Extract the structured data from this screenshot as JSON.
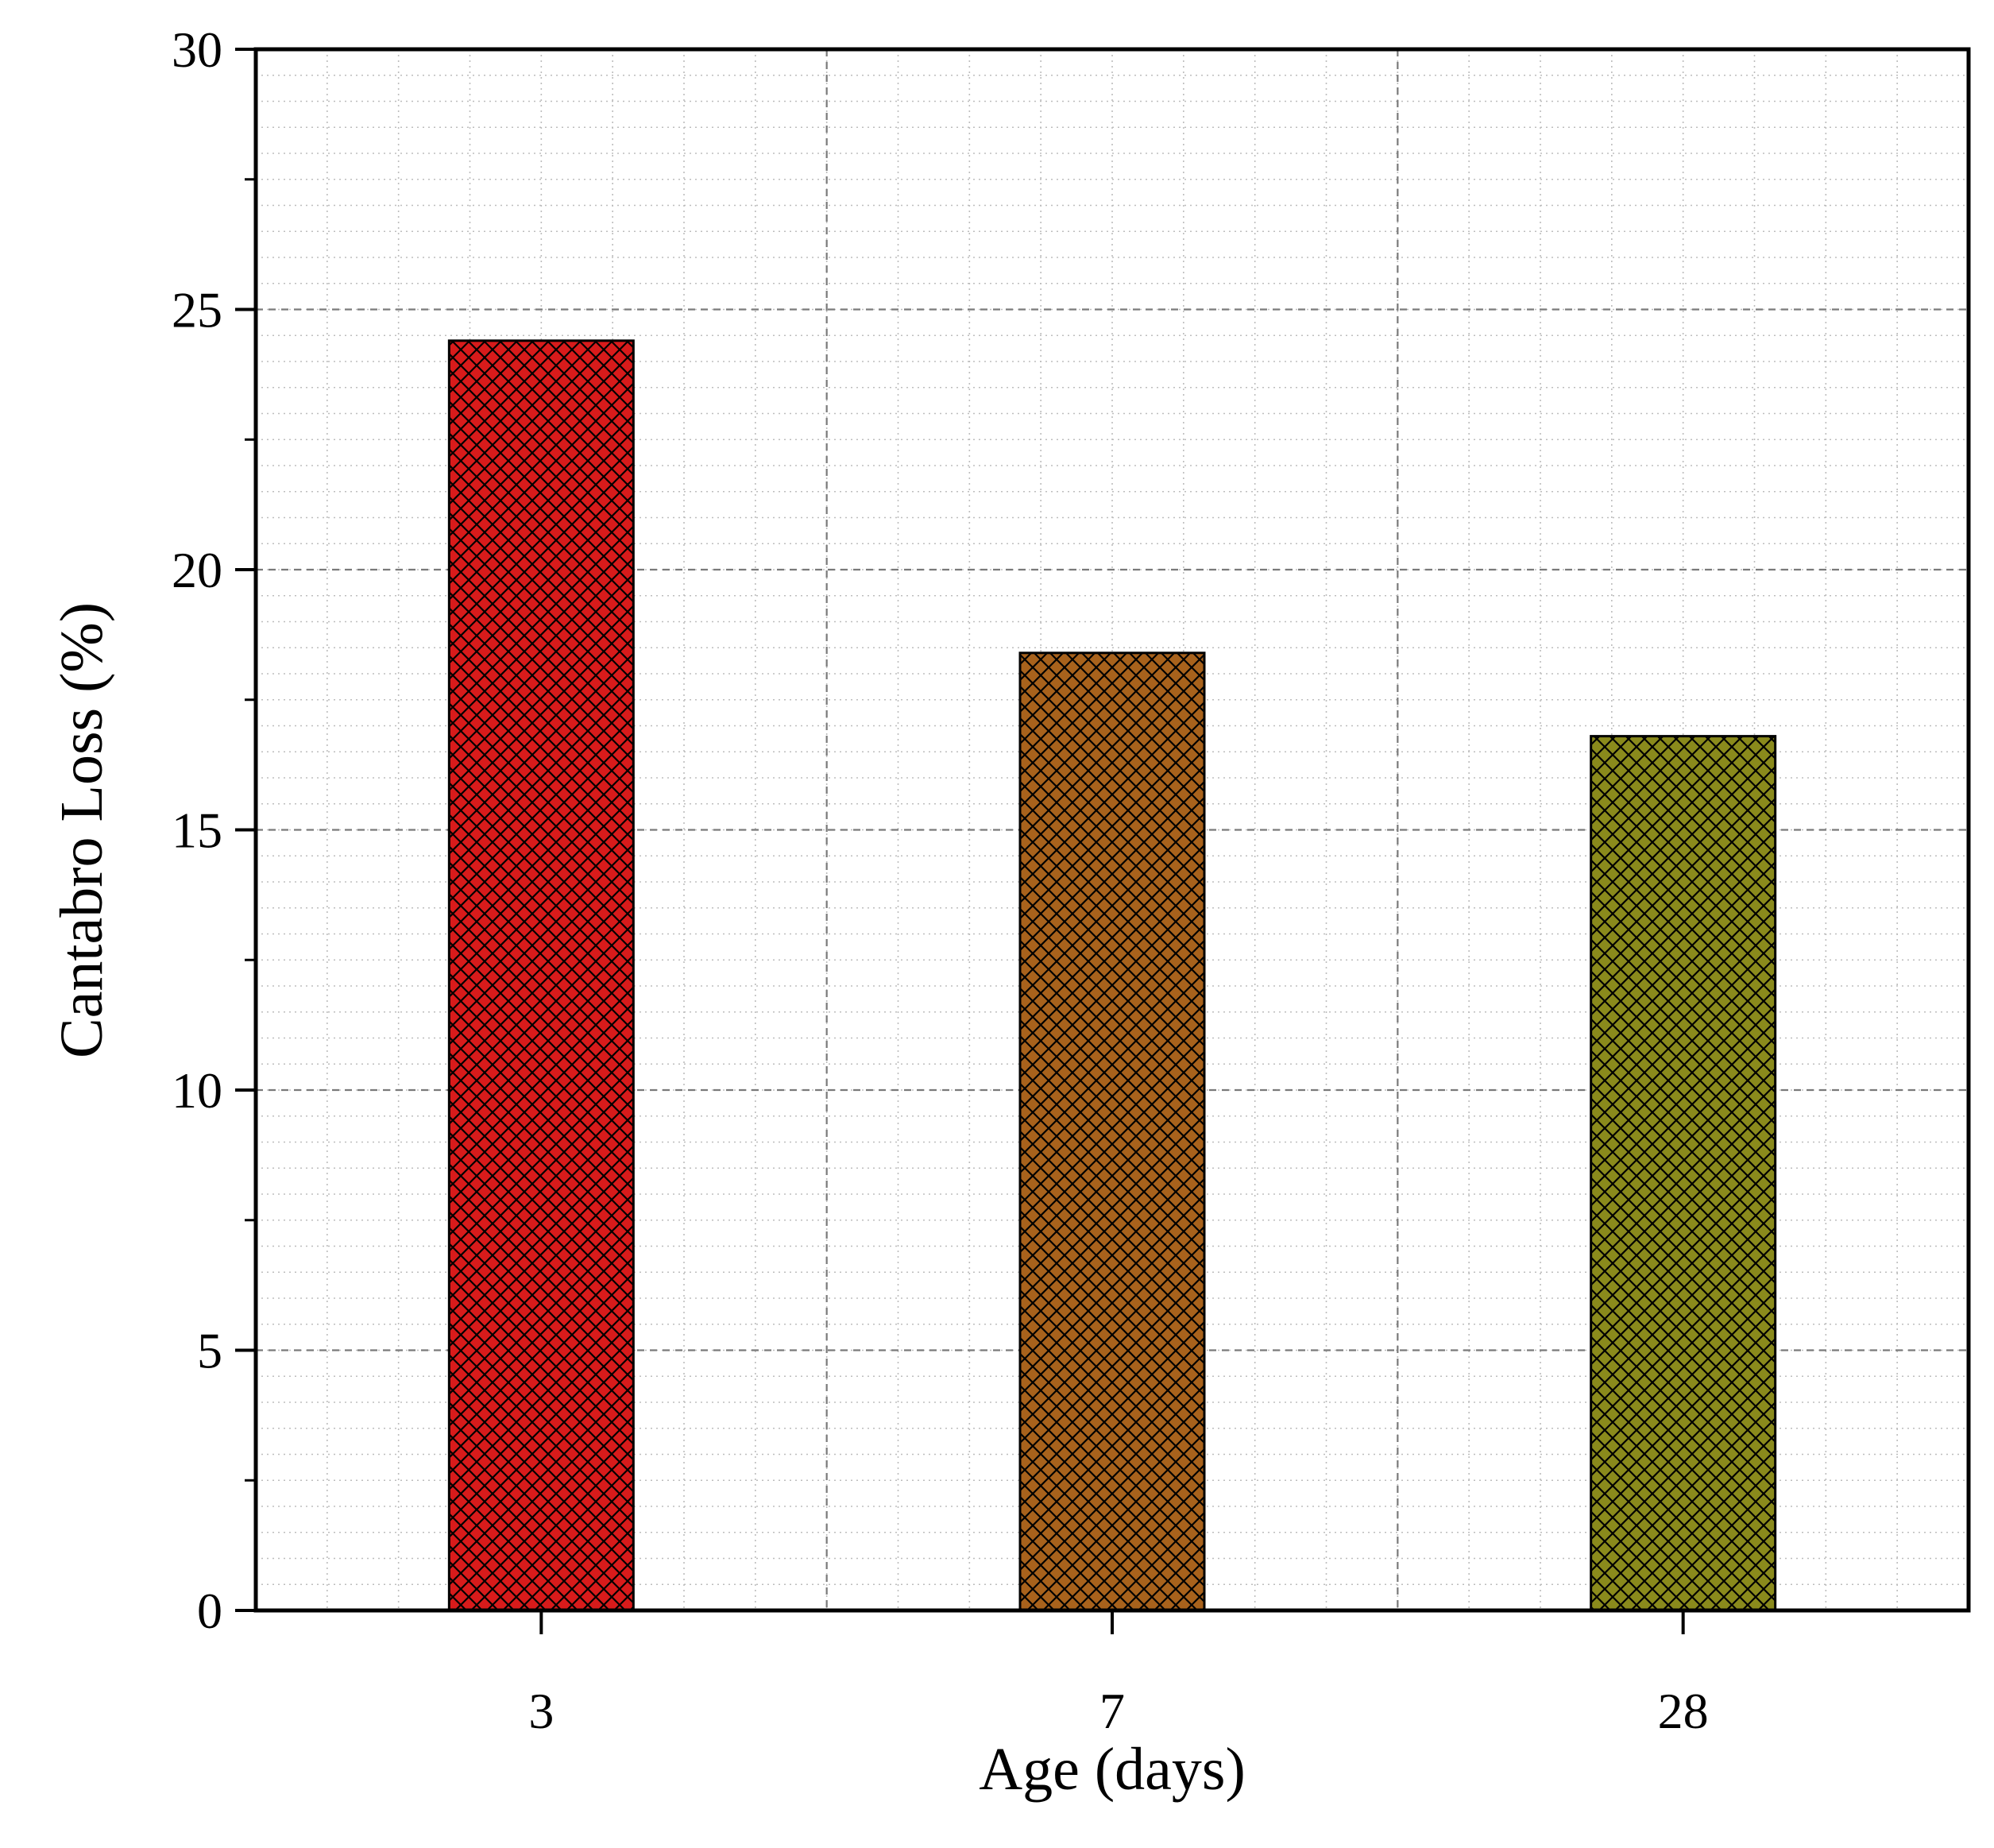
{
  "chart_data": {
    "type": "bar",
    "title": "",
    "xlabel": "Age (days)",
    "ylabel": "Cantabro Loss (%)",
    "categories": [
      "3",
      "7",
      "28"
    ],
    "values": [
      24.4,
      18.4,
      16.8
    ],
    "ylim": [
      0,
      30
    ],
    "yticks": [
      0,
      5,
      10,
      15,
      20,
      25,
      30
    ],
    "ytick_labels": [
      "0",
      "5",
      "10",
      "15",
      "20",
      "25",
      "30"
    ],
    "grid": true,
    "bar_colors": [
      "#d81b1b",
      "#a8621c",
      "#8a8a1c"
    ],
    "hatch": "crosshatch"
  }
}
